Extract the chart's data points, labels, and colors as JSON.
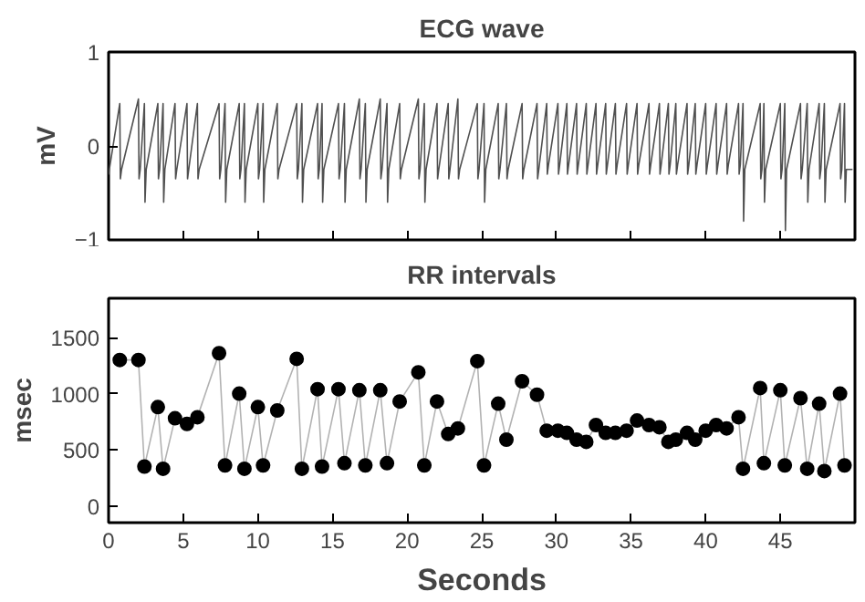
{
  "chart_data": [
    {
      "type": "line",
      "title": "ECG wave",
      "ylabel": "mV",
      "xlim": [
        0,
        50
      ],
      "xticks": [
        0,
        5,
        10,
        15,
        20,
        25,
        30,
        35,
        40,
        45
      ],
      "ylim": [
        -1,
        1
      ],
      "yticks": [
        -1,
        0,
        1
      ],
      "tick_labels": "y",
      "grid": false,
      "marker": "none",
      "series": [
        {
          "color": "#505050",
          "x": [
            0,
            0.75,
            0.79,
            0.87,
            2.0,
            2.04,
            2.12,
            2.4,
            2.44,
            2.52,
            3.3,
            3.34,
            3.42,
            3.65,
            3.69,
            3.77,
            4.45,
            4.49,
            4.57,
            5.25,
            5.29,
            5.37,
            5.95,
            5.99,
            6.07,
            7.4,
            7.44,
            7.52,
            7.8,
            7.84,
            7.92,
            8.75,
            8.79,
            8.87,
            9.1,
            9.14,
            9.22,
            10.0,
            10.04,
            10.12,
            10.35,
            10.39,
            10.47,
            11.3,
            11.34,
            11.42,
            12.6,
            12.64,
            12.72,
            12.95,
            12.99,
            13.07,
            14.0,
            14.04,
            14.12,
            14.3,
            14.34,
            14.42,
            15.4,
            15.44,
            15.52,
            15.8,
            15.84,
            15.92,
            16.8,
            16.84,
            16.92,
            17.2,
            17.24,
            17.32,
            18.2,
            18.24,
            18.32,
            18.65,
            18.69,
            18.77,
            19.5,
            19.54,
            19.62,
            20.75,
            20.79,
            20.87,
            21.15,
            21.19,
            21.27,
            22.0,
            22.04,
            22.12,
            22.75,
            22.79,
            22.87,
            23.4,
            23.44,
            23.52,
            24.7,
            24.74,
            24.82,
            25.15,
            25.19,
            25.27,
            26.1,
            26.14,
            26.22,
            26.65,
            26.69,
            26.77,
            27.7,
            27.74,
            27.82,
            28.7,
            28.74,
            28.82,
            29.35,
            29.39,
            29.47,
            30.1,
            30.14,
            30.22,
            30.7,
            30.74,
            30.82,
            31.35,
            31.39,
            31.47,
            32.0,
            32.04,
            32.12,
            32.65,
            32.69,
            32.77,
            33.3,
            33.34,
            33.42,
            33.95,
            33.99,
            34.07,
            34.7,
            34.74,
            34.82,
            35.4,
            35.44,
            35.52,
            36.2,
            36.24,
            36.32,
            36.9,
            36.94,
            37.02,
            37.5,
            37.54,
            37.62,
            38.0,
            38.04,
            38.12,
            38.75,
            38.79,
            38.87,
            39.3,
            39.34,
            39.42,
            40.0,
            40.04,
            40.12,
            40.7,
            40.74,
            40.82,
            41.4,
            41.44,
            41.52,
            42.2,
            42.24,
            42.32,
            42.5,
            42.54,
            42.62,
            43.65,
            43.69,
            43.77,
            43.9,
            43.94,
            44.02,
            45.0,
            45.04,
            45.12,
            45.3,
            45.34,
            45.42,
            46.35,
            46.39,
            46.47,
            46.8,
            46.84,
            46.92,
            47.6,
            47.64,
            47.72,
            47.95,
            47.99,
            48.07,
            49.0,
            49.04,
            49.12,
            49.3,
            49.34,
            49.42,
            49.8
          ],
          "values": [
            -0.3,
            0.45,
            -0.35,
            -0.25,
            0.5,
            -0.35,
            -0.25,
            0.45,
            -0.6,
            -0.25,
            0.45,
            -0.35,
            -0.25,
            0.45,
            -0.6,
            -0.25,
            0.45,
            -0.35,
            -0.25,
            0.45,
            -0.35,
            -0.25,
            0.45,
            -0.35,
            -0.25,
            0.45,
            -0.35,
            -0.25,
            0.45,
            -0.6,
            -0.25,
            0.45,
            -0.35,
            -0.25,
            0.45,
            -0.6,
            -0.25,
            0.45,
            -0.35,
            -0.25,
            0.45,
            -0.6,
            -0.25,
            0.45,
            -0.35,
            -0.25,
            0.45,
            -0.35,
            -0.25,
            0.45,
            -0.6,
            -0.25,
            0.45,
            -0.35,
            -0.25,
            0.45,
            -0.6,
            -0.25,
            0.45,
            -0.35,
            -0.25,
            0.45,
            -0.6,
            -0.25,
            0.5,
            -0.35,
            -0.25,
            0.45,
            -0.6,
            -0.25,
            0.5,
            -0.35,
            -0.25,
            0.45,
            -0.6,
            -0.25,
            0.45,
            -0.35,
            -0.25,
            0.5,
            -0.35,
            -0.25,
            0.45,
            -0.6,
            -0.25,
            0.45,
            -0.35,
            -0.25,
            0.45,
            -0.35,
            -0.25,
            0.5,
            -0.35,
            -0.25,
            0.45,
            -0.35,
            -0.25,
            0.45,
            -0.6,
            -0.25,
            0.45,
            -0.35,
            -0.25,
            0.45,
            -0.35,
            -0.25,
            0.45,
            -0.35,
            -0.25,
            0.45,
            -0.35,
            -0.25,
            0.45,
            -0.3,
            -0.2,
            0.45,
            -0.3,
            -0.2,
            0.45,
            -0.3,
            -0.2,
            0.45,
            -0.3,
            -0.2,
            0.45,
            -0.3,
            -0.2,
            0.45,
            -0.3,
            -0.2,
            0.45,
            -0.3,
            -0.2,
            0.45,
            -0.3,
            -0.2,
            0.45,
            -0.3,
            -0.2,
            0.45,
            -0.3,
            -0.2,
            0.45,
            -0.3,
            -0.2,
            0.45,
            -0.3,
            -0.2,
            0.45,
            -0.3,
            -0.2,
            0.45,
            -0.3,
            -0.2,
            0.45,
            -0.3,
            -0.2,
            0.45,
            -0.3,
            -0.2,
            0.45,
            -0.3,
            -0.2,
            0.45,
            -0.3,
            -0.2,
            0.45,
            -0.3,
            -0.2,
            0.45,
            -0.3,
            -0.2,
            0.45,
            -0.8,
            -0.25,
            0.45,
            -0.35,
            -0.25,
            0.45,
            -0.6,
            -0.25,
            0.45,
            -0.35,
            -0.25,
            0.45,
            -0.9,
            -0.25,
            0.45,
            -0.35,
            -0.25,
            0.45,
            -0.6,
            -0.25,
            0.45,
            -0.35,
            -0.25,
            0.45,
            -0.6,
            -0.25,
            0.45,
            -0.35,
            -0.25,
            0.45,
            -0.6,
            -0.25,
            -0.25
          ]
        }
      ]
    },
    {
      "type": "line",
      "title": "RR intervals",
      "xlabel": "Seconds",
      "ylabel": "msec",
      "xlim": [
        0,
        50
      ],
      "xticks": [
        0,
        5,
        10,
        15,
        20,
        25,
        30,
        35,
        40,
        45
      ],
      "ylim": [
        -150,
        1850
      ],
      "yticks": [
        0,
        500,
        1000,
        1500
      ],
      "grid": false,
      "marker": "circle",
      "series": [
        {
          "color": "#000000",
          "x": [
            0.75,
            2.0,
            2.4,
            3.3,
            3.65,
            4.45,
            5.25,
            5.95,
            7.4,
            7.8,
            8.75,
            9.1,
            10.0,
            10.35,
            11.3,
            12.6,
            12.95,
            14.0,
            14.3,
            15.4,
            15.8,
            16.8,
            17.2,
            18.2,
            18.65,
            19.5,
            20.75,
            21.15,
            22.0,
            22.75,
            23.4,
            24.7,
            25.15,
            26.1,
            26.65,
            27.7,
            28.7,
            29.35,
            30.1,
            30.7,
            31.35,
            32.0,
            32.65,
            33.3,
            33.95,
            34.7,
            35.4,
            36.2,
            36.9,
            37.5,
            38.0,
            38.75,
            39.3,
            40.0,
            40.7,
            41.4,
            42.2,
            42.5,
            43.65,
            43.9,
            45.0,
            45.3,
            46.35,
            46.8,
            47.6,
            47.95,
            49.0,
            49.3
          ],
          "values": [
            1300,
            1300,
            350,
            880,
            330,
            780,
            730,
            790,
            1360,
            360,
            1000,
            330,
            880,
            360,
            850,
            1310,
            330,
            1040,
            350,
            1040,
            380,
            1030,
            360,
            1030,
            380,
            930,
            1190,
            360,
            930,
            640,
            690,
            1290,
            360,
            910,
            590,
            1110,
            990,
            670,
            670,
            650,
            590,
            570,
            720,
            650,
            650,
            670,
            760,
            720,
            700,
            570,
            590,
            650,
            590,
            670,
            720,
            690,
            790,
            330,
            1050,
            380,
            1030,
            360,
            960,
            330,
            910,
            310,
            1000,
            360
          ]
        }
      ]
    }
  ]
}
